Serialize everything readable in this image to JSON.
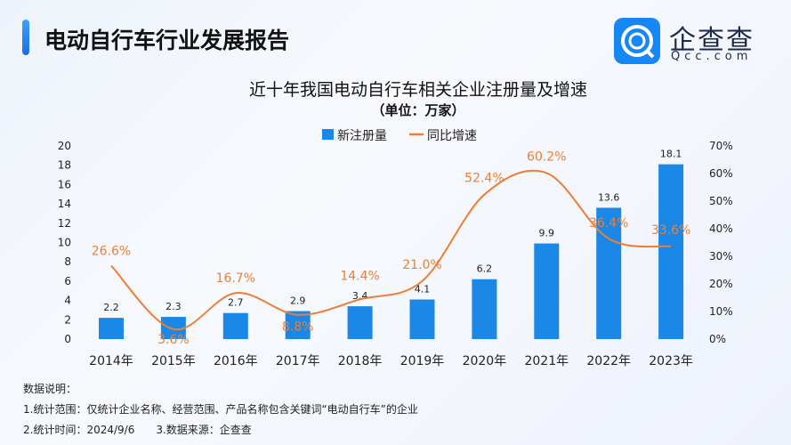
{
  "header": {
    "title": "电动自行车行业发展报告",
    "logo_text": "企查查",
    "logo_sub": "Qcc.com"
  },
  "chart_data": {
    "type": "bar",
    "title": "近十年我国电动自行车相关企业注册量及增速",
    "subtitle": "（单位：万家）",
    "legend": [
      "新注册量",
      "同比增速"
    ],
    "legend_placement": "top",
    "categories": [
      "2014年",
      "2015年",
      "2016年",
      "2017年",
      "2018年",
      "2019年",
      "2020年",
      "2021年",
      "2022年",
      "2023年"
    ],
    "series": [
      {
        "name": "新注册量",
        "type": "bar",
        "axis": "left",
        "color": "#1b87e6",
        "values": [
          2.2,
          2.3,
          2.7,
          2.9,
          3.4,
          4.1,
          6.2,
          9.9,
          13.6,
          18.1
        ],
        "labels": [
          "2.2",
          "2.3",
          "2.7",
          "2.9",
          "3.4",
          "4.1",
          "6.2",
          "9.9",
          "13.6",
          "18.1"
        ]
      },
      {
        "name": "同比增速",
        "type": "line",
        "axis": "right",
        "color": "#ec7f35",
        "values": [
          26.6,
          3.6,
          16.7,
          8.8,
          14.4,
          21.0,
          52.4,
          60.2,
          36.4,
          33.6
        ],
        "labels": [
          "26.6%",
          "3.6%",
          "16.7%",
          "8.8%",
          "14.4%",
          "21.0%",
          "52.4%",
          "60.2%",
          "36.4%",
          "33.6%"
        ]
      }
    ],
    "ylim_left": [
      0,
      20
    ],
    "yticks_left": [
      "0",
      "2",
      "4",
      "6",
      "8",
      "10",
      "12",
      "14",
      "16",
      "18",
      "20"
    ],
    "ylim_right": [
      0,
      70
    ],
    "yticks_right": [
      "0%",
      "10%",
      "20%",
      "30%",
      "40%",
      "50%",
      "60%",
      "70%"
    ],
    "grid": false
  },
  "notes": {
    "heading": "数据说明：",
    "line1": "1.统计范围：仅统计企业名称、经营范围、产品名称包含关键词“电动自行车”的企业",
    "line2": "2.统计时间：2024/9/6　　3.数据来源：企查查"
  }
}
